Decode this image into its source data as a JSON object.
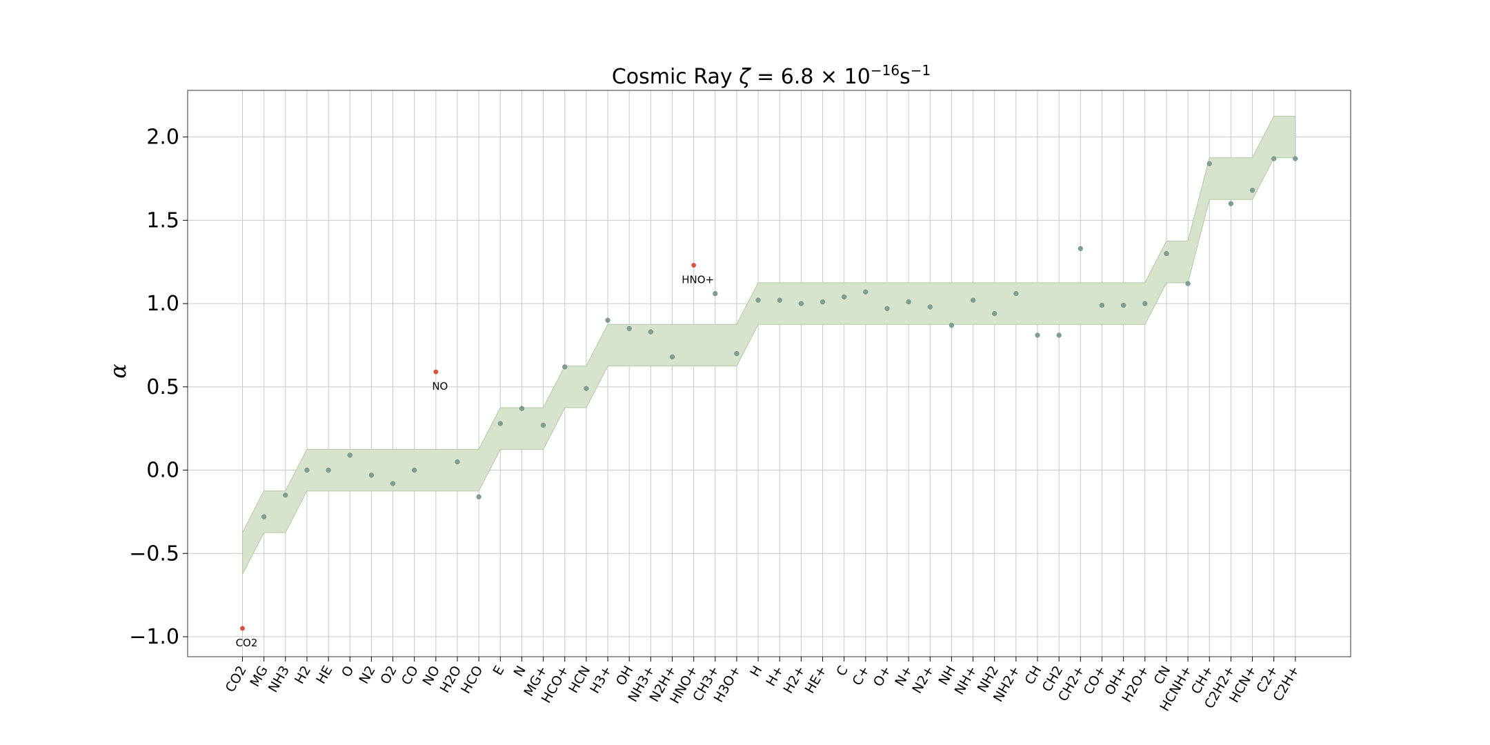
{
  "chart_data": {
    "type": "scatter",
    "title_main": "Cosmic Ray ",
    "title_symbol": "ζ",
    "title_mid": " = 6.8 × 10",
    "title_exp": "−16",
    "title_unit": "s",
    "title_unit_exp": "−1",
    "xlabel": "",
    "ylabel": "α",
    "ylim": [
      -1.12,
      2.28
    ],
    "yticks": [
      {
        "value": -1.0,
        "label": "−1.0"
      },
      {
        "value": -0.5,
        "label": "−0.5"
      },
      {
        "value": 0.0,
        "label": "0.0"
      },
      {
        "value": 0.5,
        "label": "0.5"
      },
      {
        "value": 1.0,
        "label": "1.0"
      },
      {
        "value": 1.5,
        "label": "1.5"
      },
      {
        "value": 2.0,
        "label": "2.0"
      }
    ],
    "grid": true,
    "categories": [
      "CO2",
      "MG",
      "NH3",
      "H2",
      "HE",
      "O",
      "N2",
      "O2",
      "CO",
      "NO",
      "H2O",
      "HCO",
      "E",
      "N",
      "MG+",
      "HCO+",
      "HCN",
      "H3+",
      "OH",
      "NH3+",
      "N2H+",
      "HNO+",
      "CH3+",
      "H3O+",
      "H",
      "H+",
      "H2+",
      "HE+",
      "C",
      "C+",
      "O+",
      "N+",
      "N2+",
      "NH",
      "NH+",
      "NH2",
      "NH2+",
      "CH",
      "CH2",
      "CH2+",
      "CO+",
      "OH+",
      "H2O+",
      "CN",
      "HCNH+",
      "CH+",
      "C2H2+",
      "HCN+",
      "C2+",
      "C2H+"
    ],
    "band_center": [
      -0.5,
      -0.25,
      -0.25,
      0,
      0,
      0,
      0,
      0,
      0,
      0,
      0,
      0,
      0.25,
      0.25,
      0.25,
      0.5,
      0.5,
      0.75,
      0.75,
      0.75,
      0.75,
      0.75,
      0.75,
      0.75,
      1,
      1,
      1,
      1,
      1,
      1,
      1,
      1,
      1,
      1,
      1,
      1,
      1,
      1,
      1,
      1,
      1,
      1,
      1,
      1.25,
      1.25,
      1.75,
      1.75,
      1.75,
      2,
      2
    ],
    "band_halfwidth": 0.125,
    "values": [
      -0.95,
      -0.28,
      -0.15,
      0.0,
      0.0,
      0.09,
      -0.03,
      -0.08,
      0.0,
      0.59,
      0.05,
      -0.16,
      0.28,
      0.37,
      0.27,
      0.62,
      0.49,
      0.9,
      0.85,
      0.83,
      0.68,
      1.23,
      1.06,
      0.7,
      1.02,
      1.02,
      1.0,
      1.01,
      1.04,
      1.07,
      0.97,
      1.01,
      0.98,
      0.87,
      1.02,
      0.94,
      1.06,
      0.81,
      0.81,
      1.33,
      0.99,
      0.99,
      1.0,
      1.3,
      1.12,
      1.84,
      1.6,
      1.68,
      1.87,
      1.87
    ],
    "outliers": [
      {
        "category": "CO2",
        "value": -0.95,
        "label": "CO2"
      },
      {
        "category": "NO",
        "value": 0.59,
        "label": "NO"
      },
      {
        "category": "HNO+",
        "value": 1.23,
        "label": "HNO+"
      }
    ],
    "colors": {
      "band_fill": "#d7e3cc",
      "band_edge": "#b3c8a3",
      "point": "#7f9e94",
      "outlier": "#d9533a",
      "grid": "#c8c8c8"
    }
  }
}
